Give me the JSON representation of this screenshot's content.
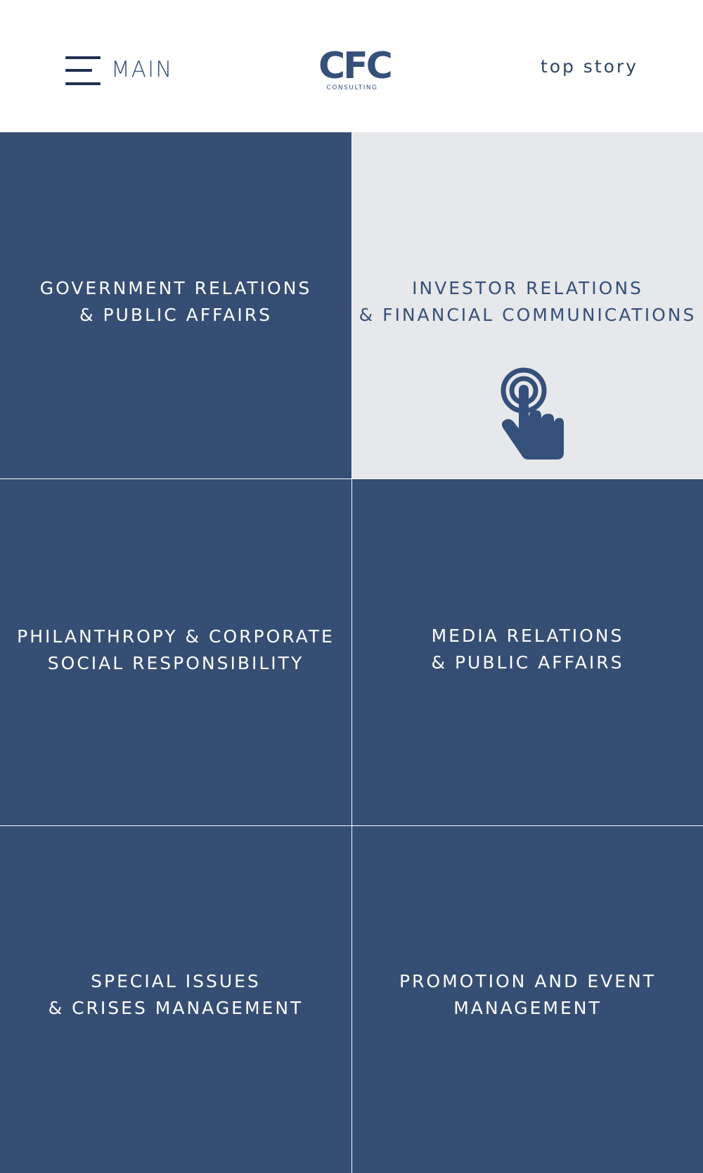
{
  "header": {
    "menu_label": "MAIN",
    "logo_text": "CFC",
    "logo_subtext": "CONSULTING",
    "top_story_label": "top story"
  },
  "tiles": [
    {
      "label": "GOVERNMENT RELATIONS\n& PUBLIC AFFAIRS",
      "style": "dark"
    },
    {
      "label": "INVESTOR RELATIONS\n& FINANCIAL COMMUNICATIONS",
      "style": "light",
      "icon": "tap-icon"
    },
    {
      "label": "PHILANTHROPY & CORPORATE\nSOCIAL RESPONSIBILITY",
      "style": "dark"
    },
    {
      "label": "MEDIA RELATIONS\n& PUBLIC AFFAIRS",
      "style": "dark"
    },
    {
      "label": "SPECIAL ISSUES\n& CRISES MANAGEMENT",
      "style": "dark"
    },
    {
      "label": "PROMOTION AND EVENT\nMANAGEMENT",
      "style": "dark"
    }
  ],
  "colors": {
    "tile_dark": "#364e73",
    "tile_light": "#e7e8eb",
    "brand": "#35507a",
    "hamburger": "#1f3050"
  }
}
